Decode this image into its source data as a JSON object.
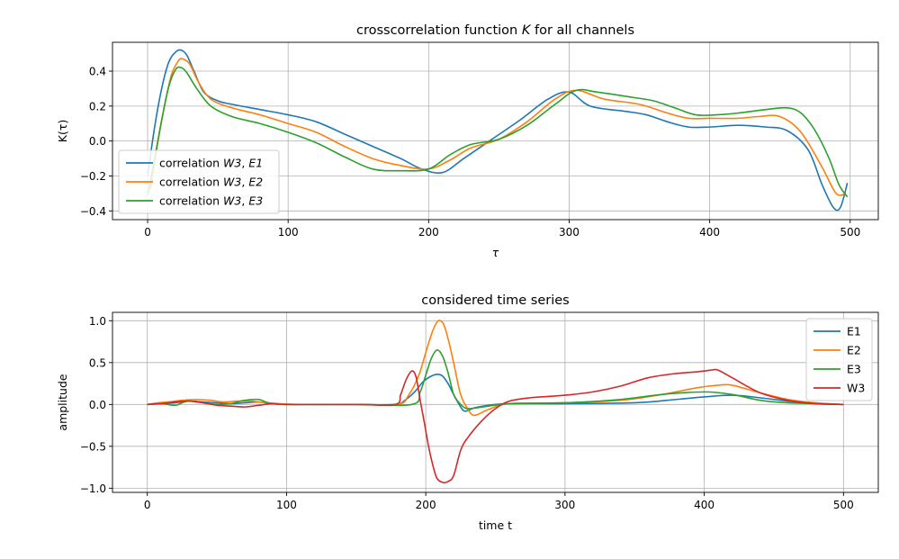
{
  "colors": {
    "E1": "#1f77b4",
    "E2": "#ff7f0e",
    "E3": "#2ca02c",
    "W3": "#d62728"
  },
  "chart_data": [
    {
      "type": "line",
      "title_prefix": "crosscorrelation function ",
      "title_math": "K",
      "title_suffix": " for all channels",
      "xlabel": "τ",
      "ylabel": "K(τ)",
      "xlim": [
        -25,
        520
      ],
      "ylim": [
        -0.45,
        0.565
      ],
      "xticks": [
        0,
        100,
        200,
        300,
        400,
        500
      ],
      "yticks": [
        -0.4,
        -0.2,
        0.0,
        0.2,
        0.4
      ],
      "ytick_labels": [
        "−0.4",
        "−0.2",
        "0.0",
        "0.2",
        "0.4"
      ],
      "grid": true,
      "legend": "lower-left",
      "series": [
        {
          "name_prefix": "correlation ",
          "name_math1": "W3",
          "name_sep": ", ",
          "name_math2": "E1",
          "color_key": "E1",
          "x": [
            0,
            5,
            10,
            15,
            20,
            24,
            28,
            33,
            40,
            50,
            60,
            80,
            100,
            120,
            140,
            160,
            180,
            195,
            210,
            225,
            245,
            265,
            285,
            300,
            315,
            340,
            355,
            370,
            385,
            400,
            420,
            440,
            455,
            470,
            480,
            488,
            493,
            498
          ],
          "y": [
            -0.2,
            0.08,
            0.3,
            0.45,
            0.51,
            0.52,
            0.49,
            0.4,
            0.28,
            0.23,
            0.21,
            0.18,
            0.15,
            0.11,
            0.04,
            -0.03,
            -0.1,
            -0.16,
            -0.18,
            -0.1,
            0.01,
            0.12,
            0.24,
            0.28,
            0.2,
            0.17,
            0.15,
            0.11,
            0.08,
            0.08,
            0.09,
            0.08,
            0.06,
            -0.05,
            -0.25,
            -0.38,
            -0.38,
            -0.24
          ]
        },
        {
          "name_prefix": "correlation ",
          "name_math1": "W3",
          "name_sep": ", ",
          "name_math2": "E2",
          "color_key": "E2",
          "x": [
            2,
            7,
            12,
            17,
            22,
            25,
            30,
            36,
            45,
            60,
            80,
            100,
            120,
            140,
            160,
            180,
            200,
            215,
            230,
            250,
            270,
            290,
            305,
            325,
            350,
            370,
            385,
            400,
            420,
            435,
            450,
            465,
            480,
            490,
            497
          ],
          "y": [
            -0.28,
            -0.02,
            0.2,
            0.38,
            0.46,
            0.47,
            0.44,
            0.34,
            0.24,
            0.19,
            0.15,
            0.1,
            0.05,
            -0.03,
            -0.1,
            -0.14,
            -0.16,
            -0.11,
            -0.04,
            0.01,
            0.11,
            0.24,
            0.29,
            0.24,
            0.21,
            0.16,
            0.13,
            0.13,
            0.13,
            0.14,
            0.14,
            0.05,
            -0.15,
            -0.3,
            -0.3
          ]
        },
        {
          "name_prefix": "correlation ",
          "name_math1": "W3",
          "name_sep": ", ",
          "name_math2": "E3",
          "color_key": "E3",
          "x": [
            0,
            5,
            10,
            15,
            20,
            24,
            28,
            35,
            45,
            60,
            80,
            100,
            120,
            140,
            160,
            180,
            200,
            215,
            230,
            250,
            270,
            290,
            305,
            320,
            345,
            360,
            375,
            390,
            405,
            420,
            440,
            455,
            465,
            475,
            485,
            492,
            498
          ],
          "y": [
            -0.31,
            -0.1,
            0.12,
            0.31,
            0.41,
            0.42,
            0.39,
            0.3,
            0.2,
            0.14,
            0.1,
            0.05,
            -0.01,
            -0.09,
            -0.16,
            -0.17,
            -0.16,
            -0.08,
            -0.02,
            0.01,
            0.09,
            0.21,
            0.29,
            0.28,
            0.25,
            0.23,
            0.19,
            0.15,
            0.15,
            0.16,
            0.18,
            0.19,
            0.16,
            0.06,
            -0.1,
            -0.25,
            -0.32
          ]
        }
      ]
    },
    {
      "type": "line",
      "title": "considered time series",
      "xlabel": "time t",
      "ylabel": "amplitude",
      "xlim": [
        -25,
        525
      ],
      "ylim": [
        -1.05,
        1.1
      ],
      "xticks": [
        0,
        100,
        200,
        300,
        400,
        500
      ],
      "yticks": [
        -1.0,
        -0.5,
        0.0,
        0.5,
        1.0
      ],
      "ytick_labels": [
        "−1.0",
        "−0.5",
        "0.0",
        "0.5",
        "1.0"
      ],
      "grid": true,
      "legend": "top-right",
      "series": [
        {
          "name": "E1",
          "color_key": "E1",
          "x": [
            0,
            10,
            20,
            30,
            40,
            50,
            60,
            70,
            80,
            90,
            100,
            120,
            150,
            178,
            185,
            192,
            198,
            203,
            208,
            212,
            216,
            220,
            224,
            228,
            235,
            245,
            260,
            300,
            350,
            380,
            400,
            420,
            440,
            460,
            480,
            500
          ],
          "y": [
            0,
            0.01,
            0.02,
            0.04,
            0.03,
            0.02,
            0.01,
            0.02,
            0.03,
            0.01,
            0,
            0,
            0,
            0,
            0.05,
            0.15,
            0.27,
            0.33,
            0.36,
            0.34,
            0.25,
            0.12,
            0.0,
            -0.08,
            -0.04,
            -0.01,
            0.01,
            0.01,
            0.02,
            0.06,
            0.09,
            0.11,
            0.08,
            0.04,
            0.01,
            0
          ]
        },
        {
          "name": "E2",
          "color_key": "E2",
          "x": [
            0,
            8,
            15,
            25,
            35,
            45,
            55,
            65,
            75,
            85,
            95,
            110,
            150,
            180,
            188,
            195,
            200,
            205,
            209,
            213,
            217,
            221,
            225,
            230,
            235,
            245,
            260,
            300,
            340,
            370,
            395,
            410,
            420,
            440,
            460,
            480,
            500
          ],
          "y": [
            0,
            0.02,
            0.03,
            0.05,
            0.06,
            0.05,
            0.03,
            0.04,
            0.04,
            0.02,
            0.01,
            0,
            0,
            0,
            0.12,
            0.35,
            0.62,
            0.88,
            1.0,
            0.95,
            0.72,
            0.42,
            0.12,
            -0.05,
            -0.13,
            -0.06,
            0.01,
            0.02,
            0.05,
            0.12,
            0.2,
            0.23,
            0.23,
            0.14,
            0.06,
            0.02,
            0
          ]
        },
        {
          "name": "E3",
          "color_key": "E3",
          "x": [
            0,
            10,
            20,
            25,
            30,
            40,
            50,
            60,
            70,
            80,
            85,
            90,
            100,
            150,
            190,
            196,
            200,
            204,
            208,
            212,
            216,
            220,
            224,
            228,
            232,
            245,
            260,
            300,
            340,
            370,
            400,
            420,
            440,
            460,
            500
          ],
          "y": [
            0,
            0.01,
            -0.01,
            0.02,
            0.04,
            0.02,
            0,
            0.01,
            0.05,
            0.06,
            0.03,
            0.01,
            0,
            0,
            0,
            0.15,
            0.35,
            0.55,
            0.65,
            0.58,
            0.38,
            0.12,
            0.02,
            -0.04,
            -0.05,
            -0.02,
            0.01,
            0.02,
            0.06,
            0.12,
            0.15,
            0.12,
            0.05,
            0.02,
            0
          ]
        },
        {
          "name": "W3",
          "color_key": "W3",
          "x": [
            0,
            10,
            20,
            30,
            40,
            50,
            60,
            70,
            80,
            90,
            100,
            150,
            178,
            182,
            186,
            190,
            193,
            196,
            199,
            202,
            205,
            208,
            212,
            216,
            220,
            225,
            230,
            240,
            250,
            260,
            275,
            300,
            320,
            340,
            360,
            380,
            395,
            405,
            410,
            420,
            440,
            460,
            480,
            500
          ],
          "y": [
            0,
            0.01,
            0.03,
            0.04,
            0.02,
            -0.01,
            -0.02,
            -0.03,
            -0.01,
            0.01,
            0,
            0,
            0,
            0.12,
            0.3,
            0.4,
            0.33,
            0.05,
            -0.22,
            -0.5,
            -0.72,
            -0.88,
            -0.93,
            -0.92,
            -0.85,
            -0.55,
            -0.4,
            -0.2,
            -0.05,
            0.04,
            0.08,
            0.11,
            0.15,
            0.22,
            0.32,
            0.37,
            0.39,
            0.41,
            0.41,
            0.32,
            0.14,
            0.05,
            0.01,
            0
          ]
        }
      ]
    }
  ]
}
